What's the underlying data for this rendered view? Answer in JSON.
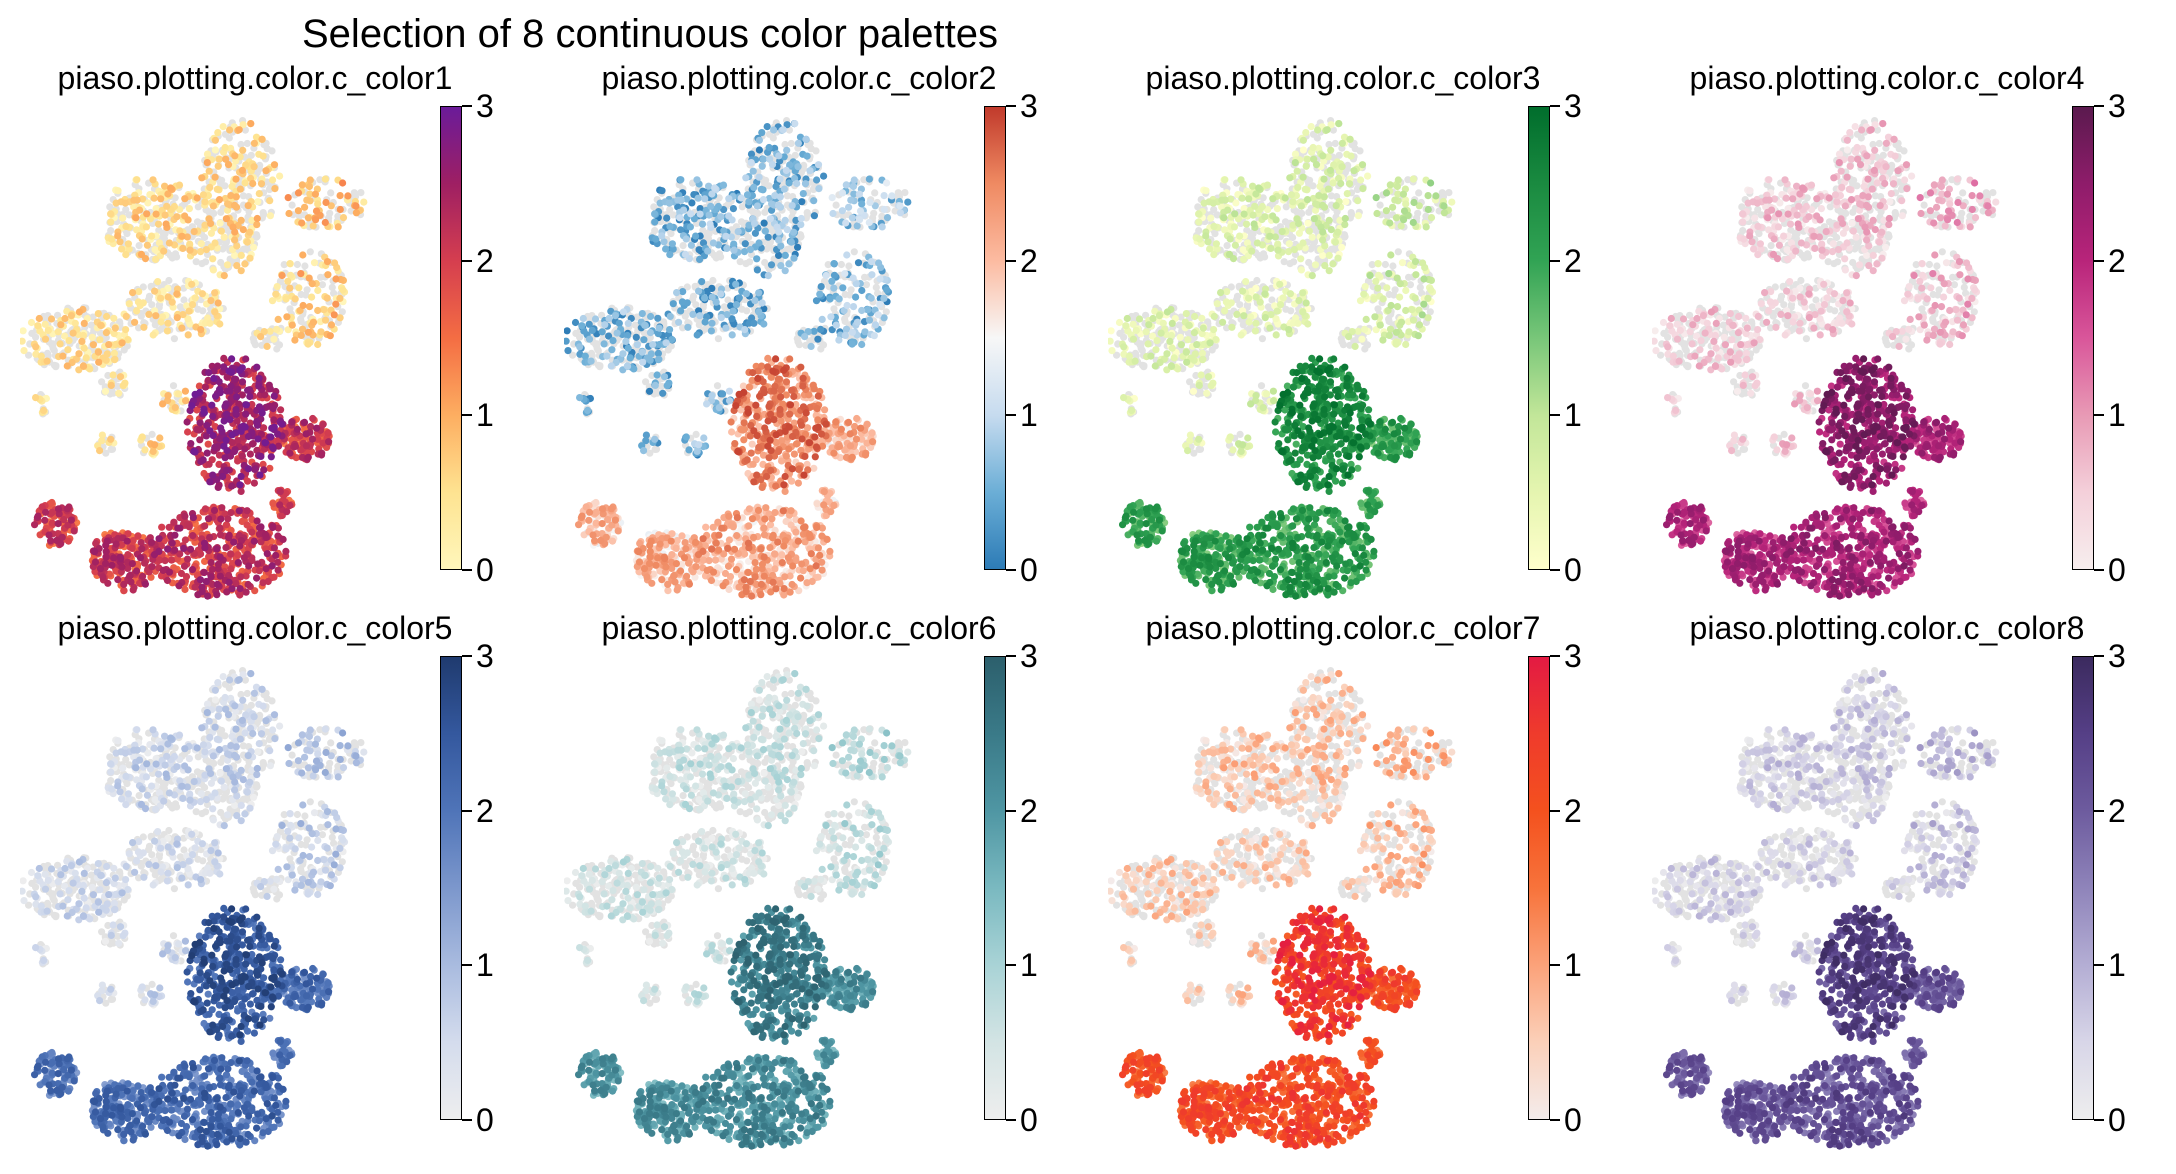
{
  "figure_title": "Selection of 8 continuous color palettes",
  "chart_data": [
    {
      "type": "scatter",
      "title": "piaso.plotting.color.c_color1",
      "colorbar": {
        "range": [
          0,
          3
        ],
        "ticks": [
          "0",
          "1",
          "2",
          "3"
        ],
        "colors": [
          "#fff7bc",
          "#fee391",
          "#fdae61",
          "#f46d43",
          "#d53e4f",
          "#9e1f63",
          "#6a1b9a"
        ]
      }
    },
    {
      "type": "scatter",
      "title": "piaso.plotting.color.c_color2",
      "colorbar": {
        "range": [
          0,
          3
        ],
        "ticks": [
          "0",
          "1",
          "2",
          "3"
        ],
        "colors": [
          "#2c7bb6",
          "#6baed6",
          "#c6dbef",
          "#f7f7f7",
          "#fcbba1",
          "#ef8a62",
          "#c0392b"
        ]
      }
    },
    {
      "type": "scatter",
      "title": "piaso.plotting.color.c_color3",
      "colorbar": {
        "range": [
          0,
          3
        ],
        "ticks": [
          "0",
          "1",
          "2",
          "3"
        ],
        "colors": [
          "#ffffcc",
          "#e5f5b0",
          "#c2e699",
          "#78c679",
          "#31a354",
          "#1a8a40",
          "#006d2c"
        ]
      }
    },
    {
      "type": "scatter",
      "title": "piaso.plotting.color.c_color4",
      "colorbar": {
        "range": [
          0,
          3
        ],
        "ticks": [
          "0",
          "1",
          "2",
          "3"
        ],
        "colors": [
          "#f7eeee",
          "#f4d0da",
          "#e89ab5",
          "#d9569a",
          "#b8247a",
          "#8e1c6a",
          "#5a1a4e"
        ]
      }
    },
    {
      "type": "scatter",
      "title": "piaso.plotting.color.c_color5",
      "colorbar": {
        "range": [
          0,
          3
        ],
        "ticks": [
          "0",
          "1",
          "2",
          "3"
        ],
        "colors": [
          "#eeeeee",
          "#d4dced",
          "#a9bbdf",
          "#7c97cc",
          "#4f74b8",
          "#34589e",
          "#1f3a6e"
        ]
      }
    },
    {
      "type": "scatter",
      "title": "piaso.plotting.color.c_color6",
      "colorbar": {
        "range": [
          0,
          3
        ],
        "ticks": [
          "0",
          "1",
          "2",
          "3"
        ],
        "colors": [
          "#eeeeee",
          "#d3e4e4",
          "#a9d3d6",
          "#7ab9c0",
          "#4f96a3",
          "#3a7a88",
          "#2c5f6c"
        ]
      }
    },
    {
      "type": "scatter",
      "title": "piaso.plotting.color.c_color7",
      "colorbar": {
        "range": [
          0,
          3
        ],
        "ticks": [
          "0",
          "1",
          "2",
          "3"
        ],
        "colors": [
          "#f4ecec",
          "#fbd0b9",
          "#fba27a",
          "#f7733b",
          "#f4511e",
          "#ef3b2c",
          "#e31a43"
        ]
      }
    },
    {
      "type": "scatter",
      "title": "piaso.plotting.color.c_color8",
      "colorbar": {
        "range": [
          0,
          3
        ],
        "ticks": [
          "0",
          "1",
          "2",
          "3"
        ],
        "colors": [
          "#eeeeee",
          "#d8d6e8",
          "#b4aed4",
          "#8f84ba",
          "#6d5b9e",
          "#553f86",
          "#3b2a5e"
        ]
      }
    }
  ]
}
